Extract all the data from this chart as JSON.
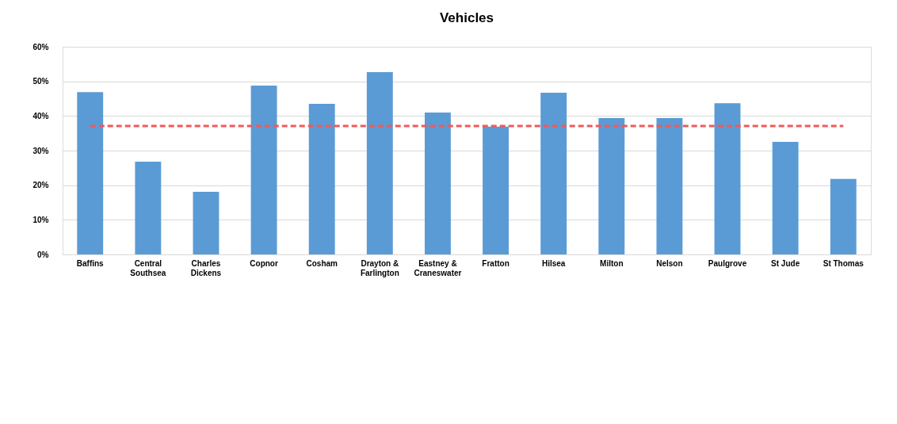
{
  "chart_data": {
    "type": "bar",
    "title": "Vehicles",
    "categories": [
      "Baffins",
      "Central Southsea",
      "Charles Dickens",
      "Copnor",
      "Cosham",
      "Drayton & Farlington",
      "Eastney & Craneswater",
      "Fratton",
      "Hilsea",
      "Milton",
      "Nelson",
      "Paulgrove",
      "St Jude",
      "St Thomas"
    ],
    "series": [
      {
        "color": "#5b9bd5",
        "values": [
          0.469,
          0.268,
          0.181,
          0.488,
          0.435,
          0.527,
          0.41,
          0.369,
          0.467,
          0.394,
          0.394,
          0.437,
          0.325,
          0.218
        ]
      }
    ],
    "ylim": [
      0,
      0.6
    ],
    "yticks": [
      {
        "value": 0,
        "label": "0%"
      },
      {
        "value": 0.1,
        "label": "10%"
      },
      {
        "value": 0.2,
        "label": "20%"
      },
      {
        "value": 0.3,
        "label": "30%"
      },
      {
        "value": 0.4,
        "label": "40%"
      },
      {
        "value": 0.5,
        "label": "50%"
      },
      {
        "value": 0.6,
        "label": "60%"
      }
    ],
    "ref_lines": [
      {
        "axis": "y",
        "value": 0.371,
        "color": "#f05a5a",
        "line_style": "dashed"
      }
    ],
    "grid": "y"
  }
}
